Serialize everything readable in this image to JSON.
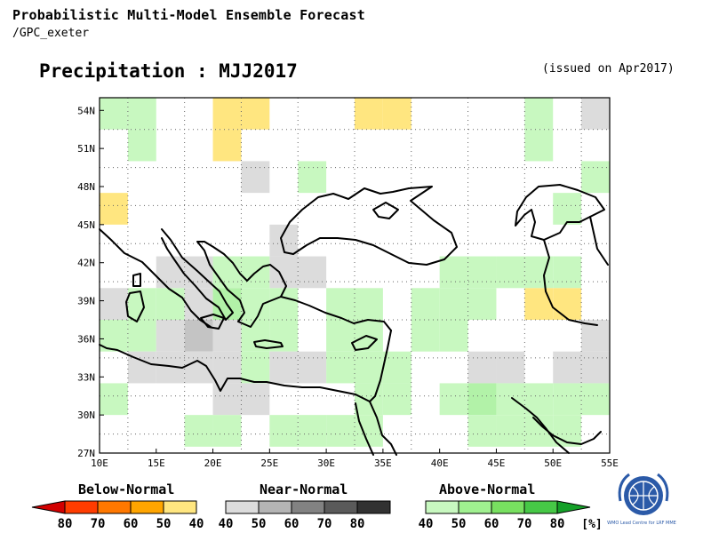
{
  "header": {
    "title": "Probabilistic Multi-Model Ensemble Forecast",
    "subtitle": "/GPC_exeter",
    "map_title": "Precipitation : MJJ2017",
    "issued": "(issued on Apr2017)"
  },
  "map": {
    "lon_range": [
      10,
      55
    ],
    "lat_range": [
      27,
      55
    ],
    "grid_step_deg": 2.5,
    "x_ticks": [
      "10E",
      "15E",
      "20E",
      "25E",
      "30E",
      "35E",
      "40E",
      "45E",
      "50E",
      "55E"
    ],
    "y_ticks": [
      "27N",
      "30N",
      "33N",
      "36N",
      "39N",
      "42N",
      "45N",
      "48N",
      "51N",
      "54N"
    ],
    "colors": {
      "below_40": "#ffe680",
      "near_40": "#dcdcdc",
      "near_50": "#c4c4c4",
      "above_40": "#c8f8c0",
      "above_50": "#b2f2a8"
    },
    "cells": [
      {
        "lon": 10,
        "lat": 52.5,
        "cat": "above_40"
      },
      {
        "lon": 12.5,
        "lat": 52.5,
        "cat": "above_40"
      },
      {
        "lon": 12.5,
        "lat": 50,
        "cat": "above_40"
      },
      {
        "lon": 20,
        "lat": 52.5,
        "cat": "below_40"
      },
      {
        "lon": 20,
        "lat": 50,
        "cat": "below_40"
      },
      {
        "lon": 22.5,
        "lat": 52.5,
        "cat": "below_40"
      },
      {
        "lon": 32.5,
        "lat": 52.5,
        "cat": "below_40"
      },
      {
        "lon": 35,
        "lat": 52.5,
        "cat": "below_40"
      },
      {
        "lon": 47.5,
        "lat": 52.5,
        "cat": "above_40"
      },
      {
        "lon": 47.5,
        "lat": 50,
        "cat": "above_40"
      },
      {
        "lon": 52.5,
        "lat": 52.5,
        "cat": "near_40"
      },
      {
        "lon": 22.5,
        "lat": 47.5,
        "cat": "near_40"
      },
      {
        "lon": 27.5,
        "lat": 47.5,
        "cat": "above_40"
      },
      {
        "lon": 52.5,
        "lat": 47.5,
        "cat": "above_40"
      },
      {
        "lon": 10,
        "lat": 45,
        "cat": "below_40"
      },
      {
        "lon": 50,
        "lat": 45,
        "cat": "above_40"
      },
      {
        "lon": 25,
        "lat": 42.5,
        "cat": "near_40"
      },
      {
        "lon": 25,
        "lat": 40,
        "cat": "near_40"
      },
      {
        "lon": 15,
        "lat": 40,
        "cat": "near_40"
      },
      {
        "lon": 17.5,
        "lat": 40,
        "cat": "near_40"
      },
      {
        "lon": 27.5,
        "lat": 40,
        "cat": "near_40"
      },
      {
        "lon": 20,
        "lat": 40,
        "cat": "above_40"
      },
      {
        "lon": 22.5,
        "lat": 40,
        "cat": "above_40"
      },
      {
        "lon": 40,
        "lat": 40,
        "cat": "above_40"
      },
      {
        "lon": 42.5,
        "lat": 40,
        "cat": "above_40"
      },
      {
        "lon": 45,
        "lat": 40,
        "cat": "above_40"
      },
      {
        "lon": 47.5,
        "lat": 40,
        "cat": "above_40"
      },
      {
        "lon": 50,
        "lat": 40,
        "cat": "above_40"
      },
      {
        "lon": 10,
        "lat": 37.5,
        "cat": "near_40"
      },
      {
        "lon": 12.5,
        "lat": 37.5,
        "cat": "above_40"
      },
      {
        "lon": 15,
        "lat": 37.5,
        "cat": "above_40"
      },
      {
        "lon": 17.5,
        "lat": 37.5,
        "cat": "near_40"
      },
      {
        "lon": 20,
        "lat": 37.5,
        "cat": "above_50"
      },
      {
        "lon": 22.5,
        "lat": 37.5,
        "cat": "above_40"
      },
      {
        "lon": 25,
        "lat": 37.5,
        "cat": "above_40"
      },
      {
        "lon": 30,
        "lat": 37.5,
        "cat": "above_40"
      },
      {
        "lon": 32.5,
        "lat": 37.5,
        "cat": "above_40"
      },
      {
        "lon": 37.5,
        "lat": 37.5,
        "cat": "above_40"
      },
      {
        "lon": 40,
        "lat": 37.5,
        "cat": "above_40"
      },
      {
        "lon": 42.5,
        "lat": 37.5,
        "cat": "above_40"
      },
      {
        "lon": 47.5,
        "lat": 37.5,
        "cat": "below_40"
      },
      {
        "lon": 50,
        "lat": 37.5,
        "cat": "below_40"
      },
      {
        "lon": 10,
        "lat": 35,
        "cat": "above_40"
      },
      {
        "lon": 12.5,
        "lat": 35,
        "cat": "above_40"
      },
      {
        "lon": 15,
        "lat": 35,
        "cat": "near_40"
      },
      {
        "lon": 17.5,
        "lat": 35,
        "cat": "near_50"
      },
      {
        "lon": 20,
        "lat": 35,
        "cat": "near_40"
      },
      {
        "lon": 22.5,
        "lat": 35,
        "cat": "above_40"
      },
      {
        "lon": 25,
        "lat": 35,
        "cat": "above_40"
      },
      {
        "lon": 30,
        "lat": 35,
        "cat": "above_40"
      },
      {
        "lon": 32.5,
        "lat": 35,
        "cat": "above_40"
      },
      {
        "lon": 37.5,
        "lat": 35,
        "cat": "above_40"
      },
      {
        "lon": 40,
        "lat": 35,
        "cat": "above_40"
      },
      {
        "lon": 52.5,
        "lat": 35,
        "cat": "near_40"
      },
      {
        "lon": 12.5,
        "lat": 32.5,
        "cat": "near_40"
      },
      {
        "lon": 15,
        "lat": 32.5,
        "cat": "near_40"
      },
      {
        "lon": 17.5,
        "lat": 32.5,
        "cat": "near_40"
      },
      {
        "lon": 20,
        "lat": 32.5,
        "cat": "near_40"
      },
      {
        "lon": 22.5,
        "lat": 32.5,
        "cat": "above_40"
      },
      {
        "lon": 25,
        "lat": 32.5,
        "cat": "near_40"
      },
      {
        "lon": 27.5,
        "lat": 32.5,
        "cat": "near_40"
      },
      {
        "lon": 30,
        "lat": 32.5,
        "cat": "above_40"
      },
      {
        "lon": 32.5,
        "lat": 32.5,
        "cat": "above_40"
      },
      {
        "lon": 35,
        "lat": 32.5,
        "cat": "above_40"
      },
      {
        "lon": 42.5,
        "lat": 32.5,
        "cat": "near_40"
      },
      {
        "lon": 45,
        "lat": 32.5,
        "cat": "near_40"
      },
      {
        "lon": 50,
        "lat": 32.5,
        "cat": "near_40"
      },
      {
        "lon": 52.5,
        "lat": 32.5,
        "cat": "near_40"
      },
      {
        "lon": 10,
        "lat": 30,
        "cat": "above_40"
      },
      {
        "lon": 20,
        "lat": 30,
        "cat": "near_40"
      },
      {
        "lon": 22.5,
        "lat": 30,
        "cat": "near_40"
      },
      {
        "lon": 32.5,
        "lat": 30,
        "cat": "above_40"
      },
      {
        "lon": 35,
        "lat": 30,
        "cat": "above_40"
      },
      {
        "lon": 40,
        "lat": 30,
        "cat": "above_40"
      },
      {
        "lon": 42.5,
        "lat": 30,
        "cat": "above_50"
      },
      {
        "lon": 45,
        "lat": 30,
        "cat": "above_40"
      },
      {
        "lon": 47.5,
        "lat": 30,
        "cat": "above_40"
      },
      {
        "lon": 50,
        "lat": 30,
        "cat": "above_40"
      },
      {
        "lon": 52.5,
        "lat": 30,
        "cat": "above_40"
      },
      {
        "lon": 17.5,
        "lat": 27.5,
        "cat": "above_40"
      },
      {
        "lon": 20,
        "lat": 27.5,
        "cat": "above_40"
      },
      {
        "lon": 25,
        "lat": 27.5,
        "cat": "above_40"
      },
      {
        "lon": 27.5,
        "lat": 27.5,
        "cat": "above_40"
      },
      {
        "lon": 30,
        "lat": 27.5,
        "cat": "above_40"
      },
      {
        "lon": 32.5,
        "lat": 27.5,
        "cat": "above_40"
      },
      {
        "lon": 42.5,
        "lat": 27.5,
        "cat": "above_40"
      },
      {
        "lon": 45,
        "lat": 27.5,
        "cat": "above_40"
      },
      {
        "lon": 47.5,
        "lat": 27.5,
        "cat": "above_40"
      },
      {
        "lon": 50,
        "lat": 27.5,
        "cat": "above_40"
      }
    ]
  },
  "legend": {
    "below": {
      "label": "Below-Normal",
      "ticks": [
        "80",
        "70",
        "60",
        "50",
        "40"
      ],
      "colors": [
        "#d20000",
        "#ff3c00",
        "#ff7800",
        "#ffa500",
        "#ffe680"
      ]
    },
    "near": {
      "label": "Near-Normal",
      "ticks": [
        "40",
        "50",
        "60",
        "70",
        "80"
      ],
      "colors": [
        "#dcdcdc",
        "#b4b4b4",
        "#828282",
        "#5a5a5a",
        "#323232"
      ]
    },
    "above": {
      "label": "Above-Normal",
      "ticks": [
        "40",
        "50",
        "60",
        "70",
        "80"
      ],
      "unit": "[%]",
      "colors": [
        "#c8f8c0",
        "#a0f090",
        "#78e060",
        "#46c846",
        "#14a028"
      ]
    }
  },
  "logo": {
    "text": "WMO Lead Centre for LRF MME"
  }
}
